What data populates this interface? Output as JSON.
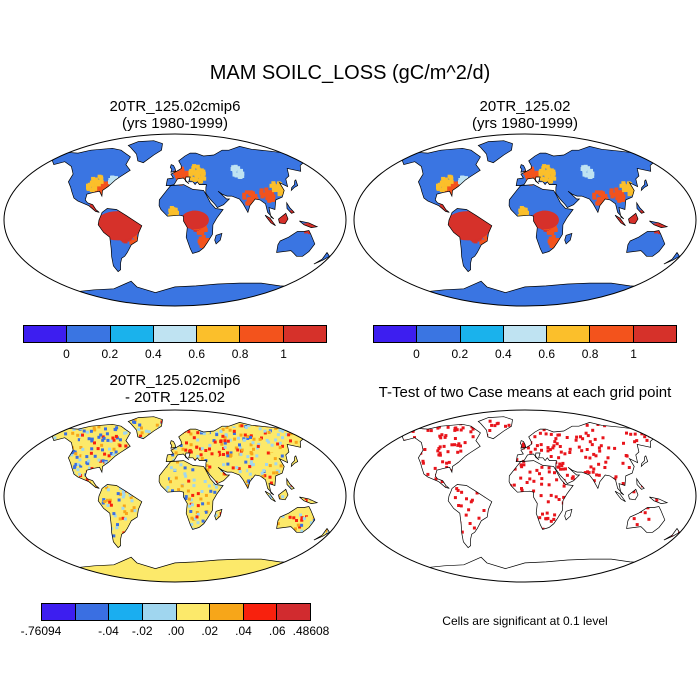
{
  "title": "MAM SOILC_LOSS (gC/m^2/d)",
  "panels": [
    {
      "title_line1": "20TR_125.02cmip6",
      "title_line2": "(yrs 1980-1999)"
    },
    {
      "title_line1": "20TR_125.02",
      "title_line2": "(yrs 1980-1999)"
    },
    {
      "title_line1": "20TR_125.02cmip6",
      "title_line2": "- 20TR_125.02"
    },
    {
      "title_line1": "T-Test of two Case means at each grid point",
      "title_line2": ""
    }
  ],
  "colorbar_top": {
    "colors": [
      "#3d1ef0",
      "#3a75e2",
      "#1ab2ec",
      "#bfe3f2",
      "#fbbf2b",
      "#f3531c",
      "#d6312a"
    ],
    "labels": [
      "0",
      "0.2",
      "0.4",
      "0.6",
      "0.8",
      "1"
    ]
  },
  "colorbar_diff": {
    "colors": [
      "#3d1ef0",
      "#3a6fe2",
      "#1aaef0",
      "#a0d6ef",
      "#fce96a",
      "#f7a619",
      "#f8210d",
      "#d12b2f"
    ],
    "labels": [
      "-.76094",
      "-.04",
      "-.02",
      ".00",
      ".02",
      ".04",
      ".06",
      ".48608"
    ]
  },
  "ttest_note": "Cells are significant at 0.1 level",
  "map_colors": {
    "ocean": "#ffffff",
    "land_base": "#3a75e2",
    "tropics": "#d6312a",
    "orange": "#f3531c",
    "yellow": "#fbbf2b",
    "lightblue": "#bfe3f2",
    "diff_base": "#fce96a",
    "diff_pos": "#f7a619",
    "diff_red": "#f8210d",
    "diff_neg": "#3a6fe2",
    "diff_lightneg": "#a0d6ef",
    "sig": "#e8141b"
  }
}
